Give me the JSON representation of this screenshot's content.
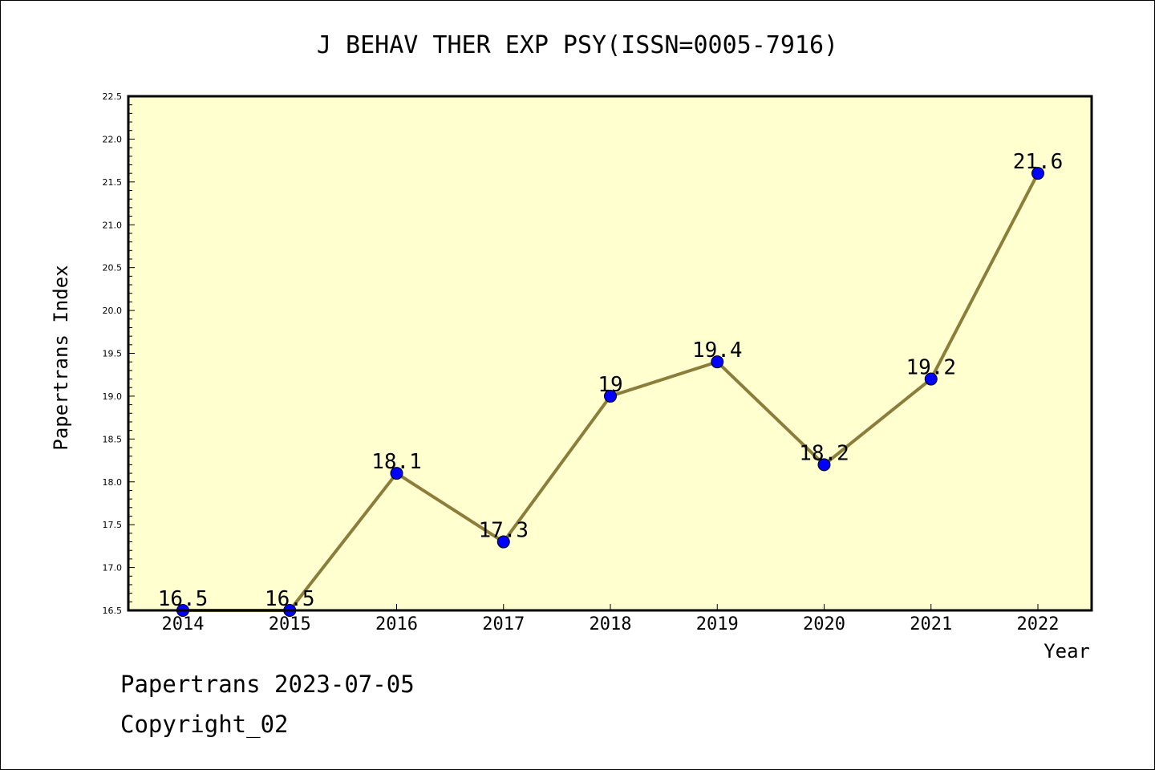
{
  "chart_data": {
    "type": "line",
    "title": "J BEHAV THER EXP PSY(ISSN=0005-7916)",
    "xlabel": "Year",
    "ylabel": "Papertrans Index",
    "categories": [
      "2014",
      "2015",
      "2016",
      "2017",
      "2018",
      "2019",
      "2020",
      "2021",
      "2022"
    ],
    "values": [
      16.5,
      16.5,
      18.1,
      17.3,
      19.0,
      19.4,
      18.2,
      19.2,
      21.6
    ],
    "data_labels": [
      "16.5",
      "16.5",
      "18.1",
      "17.3",
      "19",
      "19.4",
      "18.2",
      "19.2",
      "21.6"
    ],
    "ylim": [
      16.5,
      22.5
    ],
    "yticks": [
      "16.5",
      "17.0",
      "17.5",
      "18.0",
      "18.5",
      "19.0",
      "19.5",
      "20.0",
      "20.5",
      "21.0",
      "21.5",
      "22.0",
      "22.5"
    ],
    "grid": false,
    "colors": {
      "plot_background": "#ffffd0",
      "line": "#8b7d3a",
      "marker": "#0000ff"
    }
  },
  "footer": {
    "line1": "Papertrans 2023-07-05",
    "line2": "Copyright_02"
  }
}
